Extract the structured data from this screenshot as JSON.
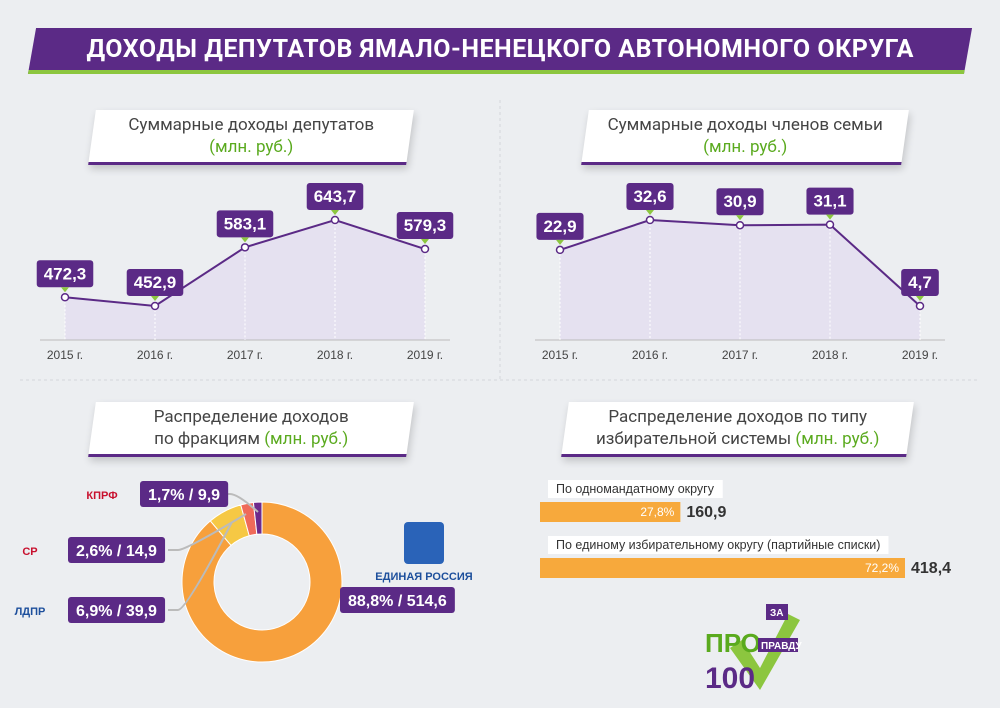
{
  "title": "ДОХОДЫ ДЕПУТАТОВ  ЯМАЛО-НЕНЕЦКОГО АВТОНОМНОГО ОКРУГА",
  "brand": [
    "ПРО",
    "100",
    "ЗА",
    "ПРАВДУ"
  ],
  "chart_data": [
    {
      "type": "line",
      "title": "Суммарные доходы депутатов",
      "subtitle": "(млн. руб.)",
      "categories": [
        "2015 г.",
        "2016 г.",
        "2017 г.",
        "2018 г.",
        "2019 г."
      ],
      "values": [
        472.3,
        452.9,
        583.1,
        643.7,
        579.3
      ],
      "value_labels": [
        "472,3",
        "452,9",
        "583,1",
        "643,7",
        "579,3"
      ],
      "color": "#5b2a86"
    },
    {
      "type": "line",
      "title": "Суммарные доходы членов семьи",
      "subtitle": "(млн. руб.)",
      "categories": [
        "2015 г.",
        "2016 г.",
        "2017 г.",
        "2018 г.",
        "2019 г."
      ],
      "values": [
        22.9,
        32.6,
        30.9,
        31.1,
        4.7
      ],
      "value_labels": [
        "22,9",
        "32,6",
        "30,9",
        "31,1",
        "4,7"
      ],
      "color": "#5b2a86"
    },
    {
      "type": "donut",
      "title": "Распределение доходов по фракциям",
      "subtitle": "(млн. руб.)",
      "categories": [
        "КПРФ",
        "СР",
        "ЛДПР",
        "ЕДИНАЯ РОССИЯ"
      ],
      "values": [
        9.9,
        14.9,
        39.9,
        514.6
      ],
      "value_labels": [
        "9,9",
        "14,9",
        "39,9",
        "514,6"
      ],
      "shares": [
        1.7,
        2.6,
        6.9,
        88.8
      ],
      "share_labels": [
        "1,7%",
        "2,6%",
        "6,9%",
        "88,8%"
      ],
      "colors": [
        "#6e2a8c",
        "#ef6a5a",
        "#f6c844",
        "#f7a03c"
      ]
    },
    {
      "type": "hbar",
      "title": "Распределение доходов по типу избирательной системы",
      "subtitle": "(млн. руб.)",
      "categories": [
        "По одномандатному округу",
        "По единому избирательному округу (партийные списки)"
      ],
      "values": [
        160.9,
        418.4
      ],
      "value_labels": [
        "160,9",
        "418,4"
      ],
      "shares": [
        27.8,
        72.2
      ],
      "share_labels": [
        "27,8%",
        "72,2%"
      ],
      "color": "#f7a93c"
    }
  ]
}
